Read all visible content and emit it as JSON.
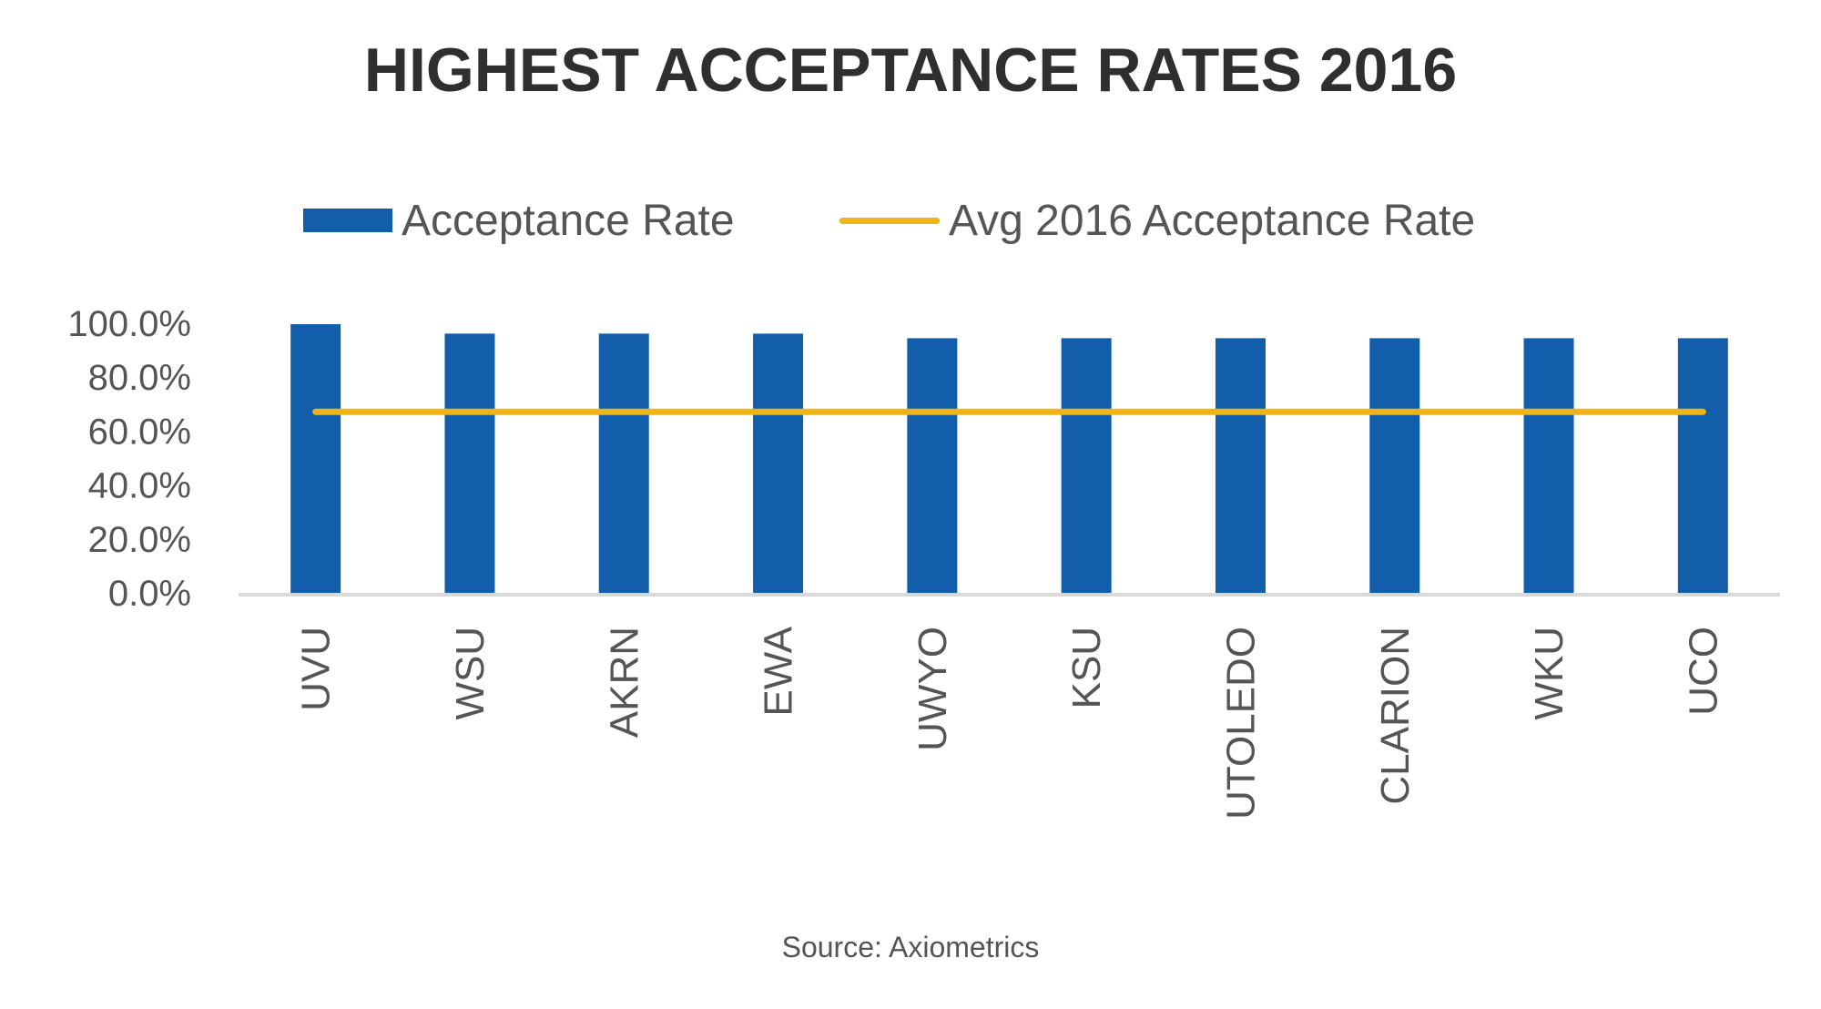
{
  "chart_data": {
    "type": "bar",
    "title": "HIGHEST ACCEPTANCE RATES 2016",
    "categories": [
      "UVU",
      "WSU",
      "AKRN",
      "EWA",
      "UWYO",
      "KSU",
      "UTOLEDO",
      "CLARION",
      "WKU",
      "UCO"
    ],
    "series": [
      {
        "name": "Acceptance Rate",
        "type": "bar",
        "color": "#135EAB",
        "values": [
          100.0,
          96.5,
          96.5,
          96.5,
          94.8,
          94.8,
          94.8,
          94.8,
          94.8,
          94.8
        ]
      },
      {
        "name": "Avg 2016 Acceptance Rate",
        "type": "line",
        "color": "#EFB416",
        "values": [
          67.5,
          67.5,
          67.5,
          67.5,
          67.5,
          67.5,
          67.5,
          67.5,
          67.5,
          67.5
        ]
      }
    ],
    "y_ticks": [
      "0.0%",
      "20.0%",
      "40.0%",
      "60.0%",
      "80.0%",
      "100.0%"
    ],
    "ylim": [
      0,
      100
    ],
    "xlabel": "",
    "ylabel": "",
    "grid": false,
    "legend_position": "top"
  },
  "source": "Source: Axiometrics"
}
